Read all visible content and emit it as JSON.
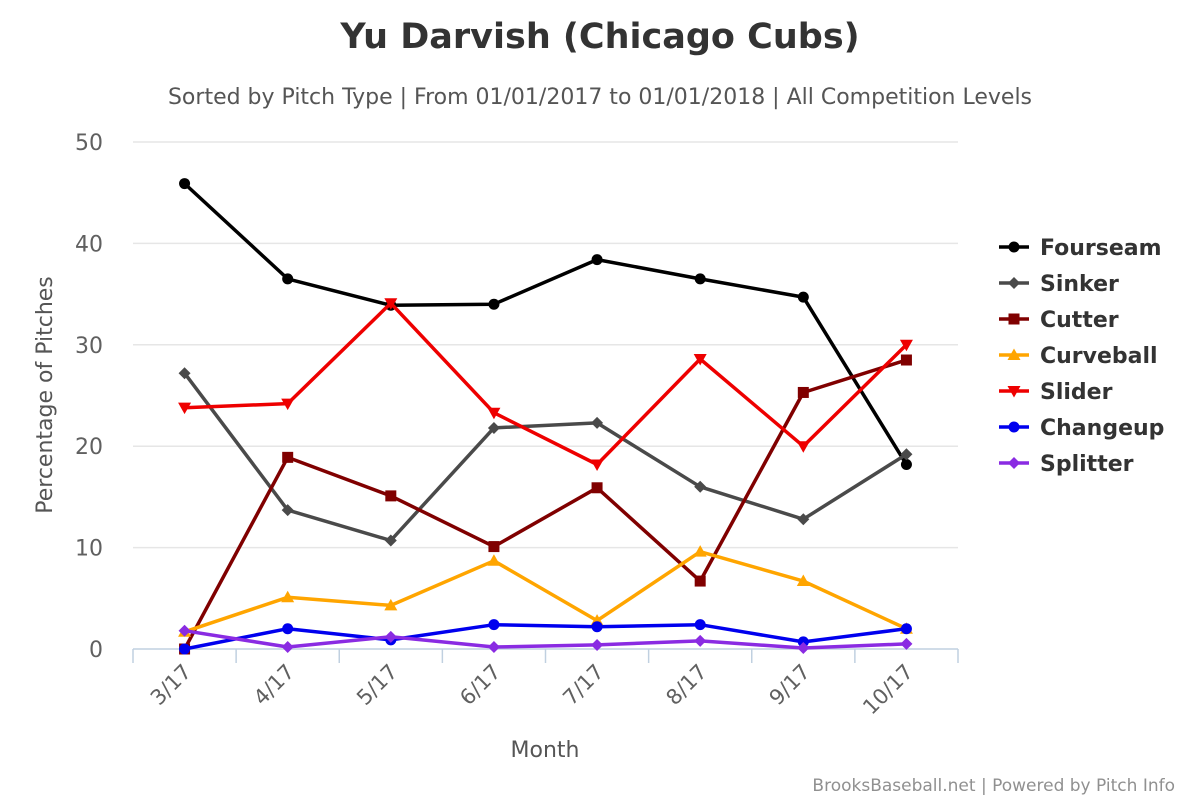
{
  "chart_data": {
    "type": "line",
    "title": "Yu Darvish (Chicago Cubs)",
    "subtitle": "Sorted by Pitch Type | From 01/01/2017 to 01/01/2018 | All Competition Levels",
    "xlabel": "Month",
    "ylabel": "Percentage of Pitches",
    "categories": [
      "3/17",
      "4/17",
      "5/17",
      "6/17",
      "7/17",
      "8/17",
      "9/17",
      "10/17"
    ],
    "ylim": [
      0,
      50
    ],
    "yticks": [
      "0",
      "10",
      "20",
      "30",
      "40",
      "50"
    ],
    "grid": true,
    "legend_position": "right",
    "series": [
      {
        "name": "Fourseam",
        "color": "#000000",
        "marker": "circle",
        "values": [
          45.9,
          36.5,
          33.9,
          34.0,
          38.4,
          36.5,
          34.7,
          18.2
        ]
      },
      {
        "name": "Sinker",
        "color": "#4a4a4a",
        "marker": "diamond",
        "values": [
          27.2,
          13.7,
          10.7,
          21.8,
          22.3,
          16.0,
          12.8,
          19.2
        ]
      },
      {
        "name": "Cutter",
        "color": "#800000",
        "marker": "square",
        "values": [
          0.0,
          18.9,
          15.1,
          10.1,
          15.9,
          6.7,
          25.3,
          28.5
        ]
      },
      {
        "name": "Curveball",
        "color": "#ffa500",
        "marker": "triangle",
        "values": [
          1.7,
          5.1,
          4.3,
          8.7,
          2.8,
          9.6,
          6.7,
          2.0
        ]
      },
      {
        "name": "Slider",
        "color": "#ee0000",
        "marker": "triangle-down",
        "values": [
          23.8,
          24.2,
          34.1,
          23.3,
          18.2,
          28.6,
          20.0,
          30.0
        ]
      },
      {
        "name": "Changeup",
        "color": "#0000ee",
        "marker": "circle",
        "values": [
          0.0,
          2.0,
          0.9,
          2.4,
          2.2,
          2.4,
          0.7,
          2.0
        ]
      },
      {
        "name": "Splitter",
        "color": "#8a2be2",
        "marker": "diamond",
        "values": [
          1.8,
          0.2,
          1.2,
          0.2,
          0.4,
          0.8,
          0.1,
          0.5
        ]
      }
    ]
  },
  "credits": "BrooksBaseball.net | Powered by Pitch Info"
}
